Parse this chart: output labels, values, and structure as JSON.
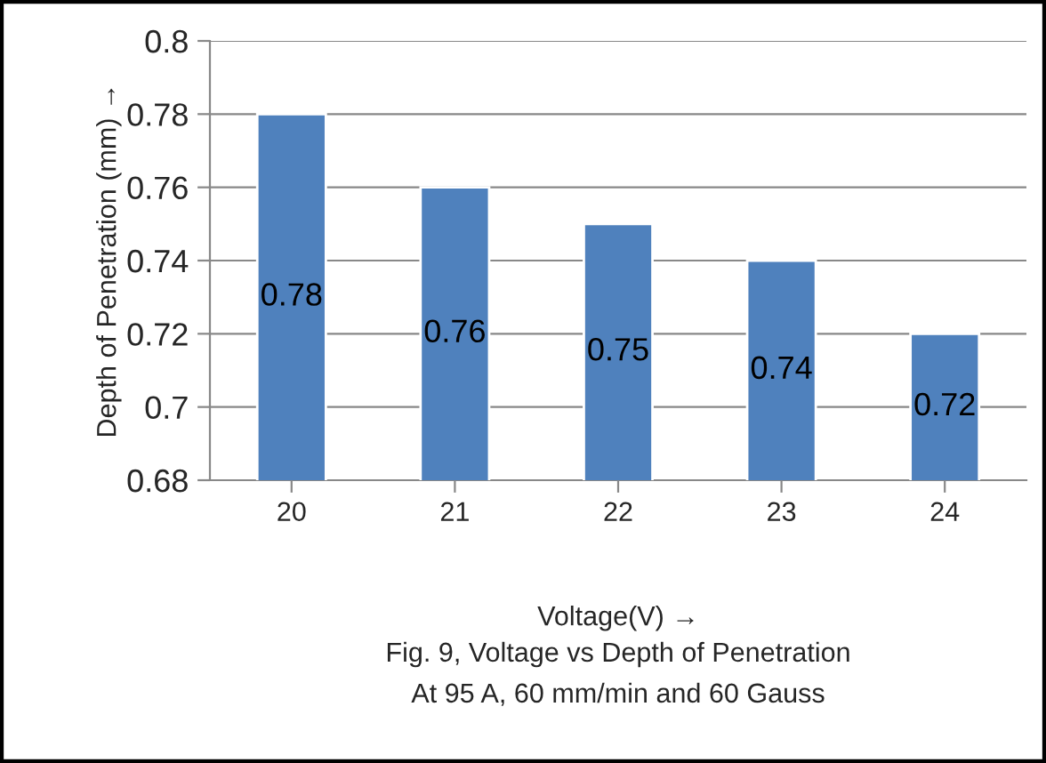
{
  "chart_data": {
    "type": "bar",
    "categories": [
      "20",
      "21",
      "22",
      "23",
      "24"
    ],
    "values": [
      0.78,
      0.76,
      0.75,
      0.74,
      0.72
    ],
    "color": "#4f81bd",
    "ylim": [
      0.68,
      0.8
    ],
    "yticks": [
      0.68,
      0.7,
      0.72,
      0.74,
      0.76,
      0.78,
      0.8
    ],
    "grid": "y",
    "xlabel": "Voltage(V) →",
    "ylabel": "Depth of Penetration (mm) →",
    "annotations": [
      "Fig. 9, Voltage vs Depth of Penetration",
      "At 95 A, 60 mm/min and 60 Gauss"
    ],
    "data_labels": true,
    "legend": false
  }
}
